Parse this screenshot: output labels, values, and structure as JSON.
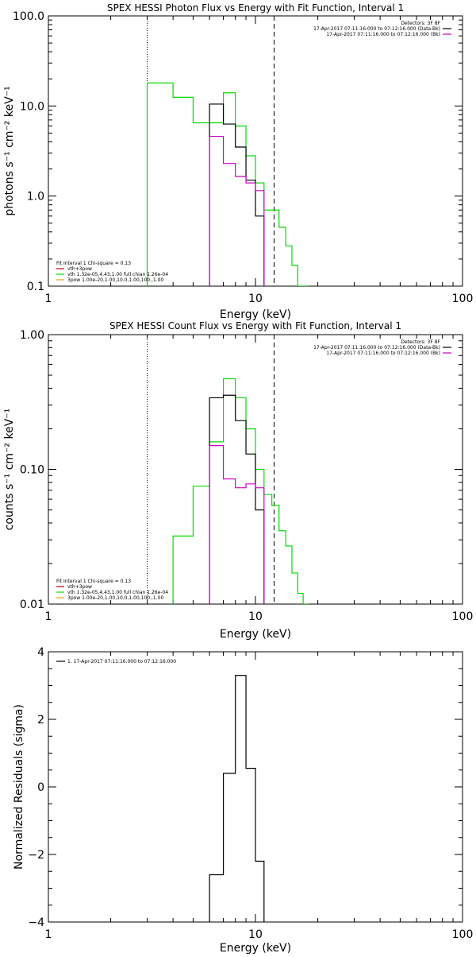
{
  "chart_data": [
    {
      "type": "line",
      "title": "SPEX HESSI Photon Flux vs Energy with Fit Function, Interval 1",
      "xlabel": "Energy (keV)",
      "ylabel": "photons s⁻¹ cm⁻² keV⁻¹",
      "xscale": "log",
      "yscale": "log",
      "xlim": [
        1,
        100
      ],
      "ylim": [
        0.1,
        100
      ],
      "x_ticks": [
        1,
        10,
        100
      ],
      "x_tick_labels": [
        "1",
        "10",
        "100"
      ],
      "y_ticks": [
        0.1,
        1,
        10,
        100
      ],
      "y_tick_labels": [
        "0.1",
        "1.0",
        "10.0",
        "100.0"
      ],
      "vlines": [
        {
          "x": 3.0,
          "style": "dotted"
        },
        {
          "x": 12.3,
          "style": "dashed"
        }
      ],
      "legend_top_right": {
        "header": "Detectors: 3F 8F",
        "entries": [
          {
            "text": "17-Apr-2017 07:11:16.000 to 07:12:16.000 (Data-Bk)",
            "color": "#000000"
          },
          {
            "text": "17-Apr-2017 07:11:16.000 to 07:12:16.000 (Bk)",
            "color": "#cc00cc"
          }
        ]
      },
      "legend_bottom_left": {
        "header": "Fit Interval 1    Chi-square = 0.13",
        "entries": [
          {
            "text": "vth+3pow",
            "color": "#cc0000"
          },
          {
            "text": "vth 1.32e-05,4.43,1.00   full chian 1.26e-04",
            "color": "#00dd00"
          },
          {
            "text": "3pow 1.00e-20,1.00,10.0,1.00,100.,1.00",
            "color": "#ddaa00"
          }
        ]
      },
      "series": [
        {
          "color": "#00dd00",
          "edges": [
            3.0,
            3.6,
            4.0,
            5.0,
            6.0,
            7.0,
            8.0,
            9.0,
            10.0,
            11.0,
            12.0,
            13.0,
            14.0,
            15.0,
            16.0,
            17.0,
            18.0
          ],
          "values": [
            18.0,
            18.0,
            12.5,
            6.5,
            6.5,
            14.0,
            6.0,
            2.8,
            1.4,
            0.7,
            0.7,
            0.45,
            0.28,
            0.17,
            0.1,
            0.1
          ]
        },
        {
          "color": "#000000",
          "edges": [
            6.0,
            7.0,
            8.0,
            9.0,
            10.0,
            11.0
          ],
          "values": [
            10.5,
            6.3,
            3.5,
            1.5,
            0.6
          ]
        },
        {
          "color": "#cc00cc",
          "edges": [
            6.0,
            7.0,
            8.0,
            9.0,
            10.0,
            11.0
          ],
          "values": [
            4.6,
            2.3,
            1.65,
            1.4,
            1.15
          ]
        }
      ]
    },
    {
      "type": "line",
      "title": "SPEX HESSI Count Flux vs Energy with Fit Function, Interval 1",
      "xlabel": "Energy (keV)",
      "ylabel": "counts s⁻¹ cm⁻² keV⁻¹",
      "xscale": "log",
      "yscale": "log",
      "xlim": [
        1,
        100
      ],
      "ylim": [
        0.01,
        1.0
      ],
      "x_ticks": [
        1,
        10,
        100
      ],
      "x_tick_labels": [
        "1",
        "10",
        "100"
      ],
      "y_ticks": [
        0.01,
        0.1,
        1.0
      ],
      "y_tick_labels": [
        "0.01",
        "0.10",
        "1.00"
      ],
      "vlines": [
        {
          "x": 3.0,
          "style": "dotted"
        },
        {
          "x": 12.3,
          "style": "dashed"
        }
      ],
      "legend_top_right": {
        "header": "Detectors: 3F 8F",
        "entries": [
          {
            "text": "17-Apr-2017 07:11:16.000 to 07:12:16.000 (Data-Bk)",
            "color": "#000000"
          },
          {
            "text": "17-Apr-2017 07:11:16.000 to 07:12:16.000 (Bk)",
            "color": "#cc00cc"
          }
        ]
      },
      "legend_bottom_left": {
        "header": "Fit Interval 1    Chi-square = 0.13",
        "entries": [
          {
            "text": "vth+3pow",
            "color": "#cc0000"
          },
          {
            "text": "vth 1.32e-05,4.43,1.00   full chian 1.26e-04",
            "color": "#00dd00"
          },
          {
            "text": "3pow 1.00e-20,1.00,10.0,1.00,100.,1.00",
            "color": "#ddaa00"
          }
        ]
      },
      "series": [
        {
          "color": "#00dd00",
          "edges": [
            4.0,
            5.0,
            6.0,
            7.0,
            8.0,
            9.0,
            10.0,
            11.0,
            12.0,
            13.0,
            14.0,
            15.0,
            16.0,
            17.0,
            18.0
          ],
          "values": [
            0.032,
            0.075,
            0.16,
            0.47,
            0.34,
            0.2,
            0.1,
            0.065,
            0.054,
            0.035,
            0.027,
            0.017,
            0.012,
            0.01
          ]
        },
        {
          "color": "#000000",
          "edges": [
            6.0,
            7.0,
            8.0,
            9.0,
            10.0,
            11.0
          ],
          "values": [
            0.34,
            0.355,
            0.23,
            0.13,
            0.05
          ]
        },
        {
          "color": "#cc00cc",
          "edges": [
            6.0,
            7.0,
            8.0,
            9.0,
            10.0,
            11.0
          ],
          "values": [
            0.15,
            0.085,
            0.073,
            0.078,
            0.073
          ]
        }
      ]
    },
    {
      "type": "line",
      "title": "",
      "xlabel": "Energy (keV)",
      "ylabel": "Normalized Residuals (sigma)",
      "xscale": "log",
      "yscale": "linear",
      "xlim": [
        1,
        100
      ],
      "ylim": [
        -4,
        4
      ],
      "x_ticks": [
        1,
        10,
        100
      ],
      "x_tick_labels": [
        "1",
        "10",
        "100"
      ],
      "y_ticks": [
        -4,
        -2,
        0,
        2,
        4
      ],
      "y_tick_labels": [
        "−4",
        "−2",
        "0",
        "2",
        "4"
      ],
      "legend": {
        "entries": [
          {
            "text": "1. 17-Apr-2017 07:11:16.000 to 07:12:16.000",
            "color": "#000000"
          }
        ]
      },
      "series": [
        {
          "color": "#000000",
          "edges": [
            6.0,
            7.0,
            8.0,
            9.0,
            10.0,
            11.0
          ],
          "values": [
            -2.6,
            0.4,
            3.3,
            0.55,
            -2.2
          ]
        }
      ]
    }
  ]
}
